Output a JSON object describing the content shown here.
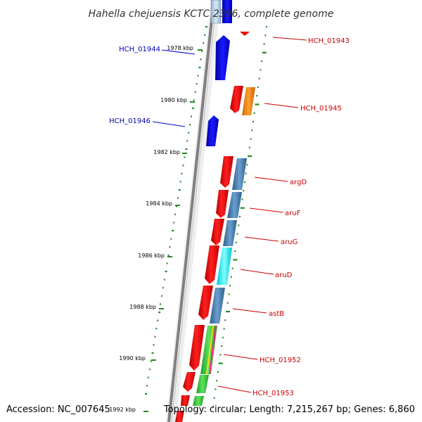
{
  "title": "Hahella chejuensis KCTC 2396, complete genome",
  "footer": {
    "accession": "Accession: NC_007645",
    "summary": "Topology: circular; Length: 7,215,267 bp; Genes: 6,860"
  },
  "ticks": [
    "1978 kbp",
    "1980 kbp",
    "1982 kbp",
    "1984 kbp",
    "1986 kbp",
    "1988 kbp",
    "1990 kbp",
    "1992 kbp"
  ],
  "labels": {
    "HCH_01943": "HCH_01943",
    "HCH_01944": "HCH_01944",
    "HCH_01945": "HCH_01945",
    "HCH_01946": "HCH_01946",
    "argD": "argD",
    "aruF": "aruF",
    "aruG": "aruG",
    "aruD": "aruD",
    "astB": "astB",
    "HCH_01952": "HCH_01952",
    "HCH_01953": "HCH_01953"
  },
  "colors": {
    "forward_gene": "#0000ee",
    "reverse_gene": "#ee0000",
    "label_forward": "#0000aa",
    "label_reverse": "#cc0000",
    "orange": "#ff8c00",
    "steelblue": "#4682b4",
    "cyan": "#00ffff",
    "green": "#33cc33",
    "tick_green": "#228b22",
    "backbone": "#808080"
  }
}
